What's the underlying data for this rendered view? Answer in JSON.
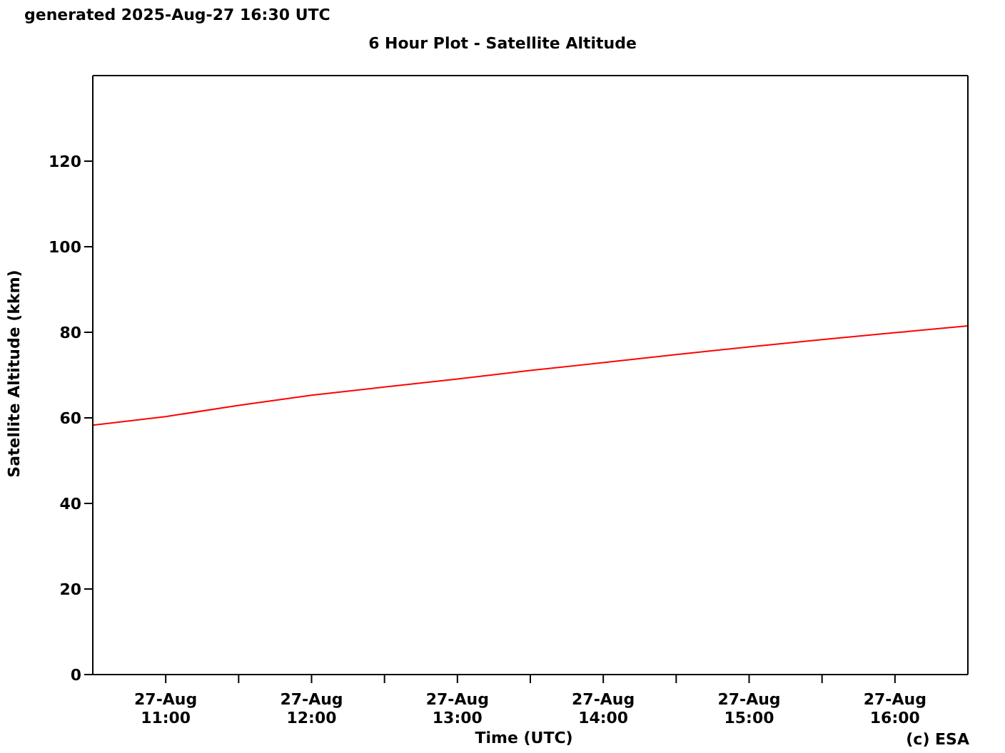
{
  "chart_data": {
    "type": "line",
    "title": "6 Hour Plot - Satellite Altitude",
    "xlabel": "Time (UTC)",
    "ylabel": "Satellite Altitude (kkm)",
    "annotations": [
      "generated 2025-Aug-27 16:30 UTC",
      "(c) ESA"
    ],
    "x": [
      "2025-08-27T10:30",
      "2025-08-27T11:00",
      "2025-08-27T11:30",
      "2025-08-27T12:00",
      "2025-08-27T12:30",
      "2025-08-27T13:00",
      "2025-08-27T13:30",
      "2025-08-27T14:00",
      "2025-08-27T14:30",
      "2025-08-27T15:00",
      "2025-08-27T15:30",
      "2025-08-27T16:00",
      "2025-08-27T16:30"
    ],
    "series": [
      {
        "color": "#ff0000",
        "values": [
          58.3,
          60.3,
          62.9,
          65.3,
          67.2,
          69.1,
          71.1,
          72.9,
          74.8,
          76.6,
          78.3,
          79.9,
          81.5
        ]
      }
    ],
    "xlim": [
      "2025-08-27T10:30",
      "2025-08-27T16:30"
    ],
    "xticks": [
      {
        "value": "2025-08-27T11:00",
        "label": "27-Aug\n11:00"
      },
      {
        "value": "2025-08-27T11:30",
        "label": null
      },
      {
        "value": "2025-08-27T12:00",
        "label": "27-Aug\n12:00"
      },
      {
        "value": "2025-08-27T12:30",
        "label": null
      },
      {
        "value": "2025-08-27T13:00",
        "label": "27-Aug\n13:00"
      },
      {
        "value": "2025-08-27T13:30",
        "label": null
      },
      {
        "value": "2025-08-27T14:00",
        "label": "27-Aug\n14:00"
      },
      {
        "value": "2025-08-27T14:30",
        "label": null
      },
      {
        "value": "2025-08-27T15:00",
        "label": "27-Aug\n15:00"
      },
      {
        "value": "2025-08-27T15:30",
        "label": null
      },
      {
        "value": "2025-08-27T16:00",
        "label": "27-Aug\n16:00"
      }
    ],
    "ylim": [
      0,
      140
    ],
    "yticks": [
      0,
      20,
      40,
      60,
      80,
      100,
      120
    ],
    "grid": false,
    "marker": "none",
    "line_style": "solid"
  }
}
